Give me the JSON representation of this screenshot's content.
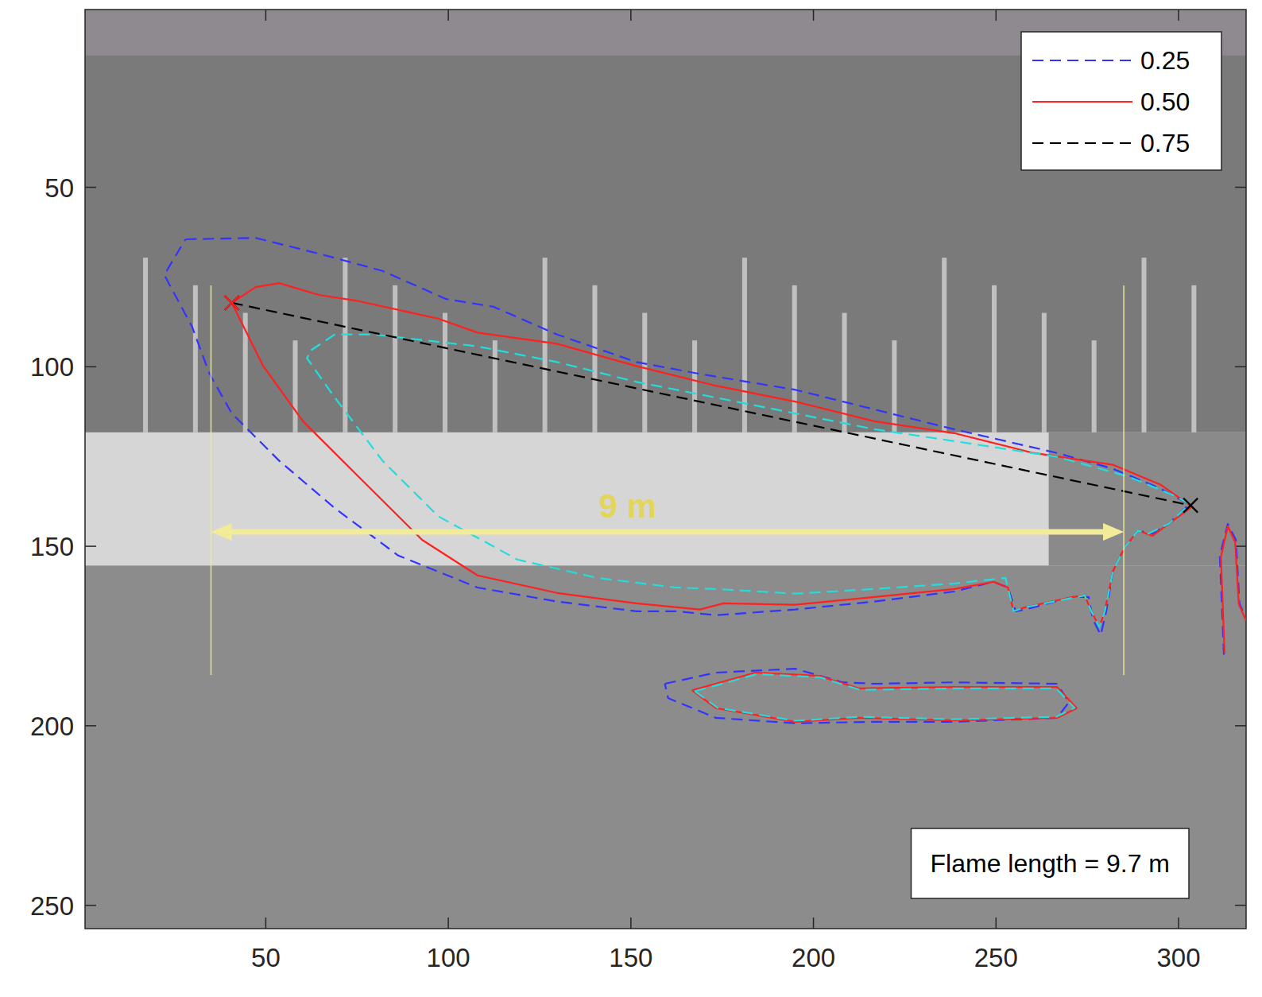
{
  "chart_data": {
    "type": "line",
    "xlim": [
      0.5,
      318.5
    ],
    "ylim": [
      256.5,
      0.5
    ],
    "xticks": [
      50,
      100,
      150,
      200,
      250,
      300
    ],
    "yticks": [
      50,
      100,
      150,
      200,
      250
    ],
    "legend": "upper right",
    "series": [
      {
        "name": "0.25",
        "color": "#3333ff",
        "line_style": "dashed",
        "x": [
          28.0,
          47.2,
          64.6,
          82.0,
          99.3,
          112.4,
          129.8,
          151.5,
          168.9,
          195.0,
          216.7,
          238.5,
          266.7,
          282.0,
          295.0,
          303.0,
          297.2,
          292.8,
          288.9,
          285.2,
          282.0,
          280.2,
          278.7,
          276.5,
          275.4,
          271.1,
          258.0,
          255.4,
          253.3,
          249.3,
          238.5,
          216.7,
          195.0,
          173.3,
          162.4,
          151.5,
          129.8,
          108.0,
          86.3,
          68.9,
          53.7,
          40.7,
          34.6,
          29.8,
          22.2,
          28.0,
          null,
          159.3,
          173.3,
          195.0,
          208.0,
          216.7,
          238.5,
          266.7,
          270.0,
          266.7,
          238.5,
          216.7,
          195.0,
          173.3,
          160.2,
          159.3,
          null,
          312.4,
          311.3,
          313.5,
          315.7,
          316.7,
          318.5
        ],
        "values": [
          64.5,
          64.1,
          68.5,
          73.3,
          81.1,
          83.3,
          91.0,
          98.7,
          102.0,
          106.4,
          111.9,
          117.4,
          124.0,
          128.4,
          133.9,
          138.3,
          143.8,
          146.5,
          145.6,
          150.4,
          157.0,
          168.1,
          174.7,
          170.3,
          164.1,
          164.1,
          167.6,
          168.1,
          161.5,
          159.9,
          162.6,
          165.4,
          167.6,
          169.2,
          168.1,
          168.1,
          165.4,
          161.5,
          152.6,
          139.4,
          126.2,
          113.0,
          102.0,
          88.8,
          74.4,
          64.5,
          null,
          188.3,
          185.2,
          184.1,
          187.9,
          188.3,
          187.9,
          188.3,
          193.4,
          197.8,
          198.9,
          198.9,
          199.3,
          197.8,
          192.3,
          188.3,
          null,
          180.2,
          152.6,
          143.8,
          148.2,
          165.9,
          170.3
        ]
      },
      {
        "name": "0.50",
        "color": "#ff2020",
        "line_style": "solid",
        "x": [
          40.7,
          47.2,
          53.7,
          64.6,
          75.4,
          97.2,
          108.0,
          129.8,
          151.5,
          173.3,
          195.0,
          216.7,
          238.5,
          260.2,
          282.0,
          295.0,
          303.7,
          297.2,
          292.8,
          288.9,
          285.2,
          282.0,
          279.8,
          278.3,
          276.1,
          274.3,
          271.1,
          258.0,
          254.8,
          253.3,
          249.3,
          238.5,
          216.7,
          195.0,
          175.4,
          168.9,
          151.5,
          129.8,
          108.0,
          92.8,
          75.4,
          60.2,
          49.3,
          40.7,
          null,
          166.7,
          184.1,
          201.5,
          212.4,
          238.5,
          266.7,
          272.1,
          266.7,
          238.5,
          212.4,
          195.0,
          173.3,
          166.7,
          null,
          312.6,
          311.6,
          313.5,
          315.5,
          316.5,
          318.5
        ],
        "values": [
          82.2,
          77.8,
          76.7,
          80.0,
          81.7,
          86.6,
          90.5,
          93.6,
          99.8,
          105.3,
          109.7,
          115.2,
          118.5,
          124.0,
          127.3,
          132.8,
          139.0,
          143.8,
          147.1,
          145.6,
          150.4,
          157.0,
          168.1,
          172.5,
          168.1,
          163.7,
          164.1,
          167.0,
          168.1,
          161.5,
          159.9,
          161.9,
          164.1,
          166.3,
          165.9,
          167.6,
          165.9,
          163.0,
          158.1,
          148.2,
          130.6,
          115.2,
          99.8,
          82.2,
          null,
          190.1,
          185.2,
          186.1,
          189.6,
          189.2,
          189.2,
          195.1,
          197.8,
          198.5,
          197.8,
          198.9,
          195.1,
          190.1,
          null,
          179.8,
          153.0,
          144.4,
          148.8,
          166.1,
          170.7
        ]
      },
      {
        "color": "#22dddd",
        "line_style": "dashed",
        "x": [
          62.4,
          68.9,
          79.7,
          108.0,
          129.8,
          151.5,
          173.3,
          195.0,
          216.7,
          238.5,
          266.7,
          286.3,
          299.3,
          303.0,
          297.2,
          291.7,
          288.9,
          285.2,
          282.0,
          279.8,
          278.3,
          276.1,
          274.3,
          258.0,
          254.8,
          252.6,
          238.5,
          216.7,
          195.0,
          173.3,
          162.4,
          140.7,
          118.9,
          97.2,
          82.0,
          68.9,
          61.3,
          62.4,
          null,
          167.5,
          184.6,
          201.8,
          212.8,
          238.5,
          266.5,
          271.5,
          266.5,
          238.5,
          212.8,
          195.0,
          173.8,
          167.5
        ],
        "values": [
          95.4,
          91.0,
          91.0,
          94.3,
          98.7,
          104.2,
          108.6,
          113.0,
          117.4,
          120.7,
          125.1,
          130.6,
          136.1,
          138.3,
          143.8,
          146.5,
          145.6,
          150.4,
          157.0,
          168.1,
          172.5,
          168.1,
          163.7,
          167.0,
          168.1,
          158.8,
          160.4,
          161.9,
          163.2,
          161.9,
          161.5,
          158.8,
          153.7,
          141.6,
          126.2,
          108.6,
          97.6,
          95.4,
          null,
          190.4,
          185.6,
          186.5,
          190.0,
          189.6,
          189.6,
          195.0,
          197.5,
          198.2,
          197.5,
          198.6,
          195.0,
          190.4
        ]
      },
      {
        "name": "0.75",
        "color": "#000000",
        "line_style": "dashed",
        "marker": "x",
        "x": [
          40.7,
          303.3
        ],
        "values": [
          82.2,
          138.6
        ]
      },
      {
        "color": "#ff2020",
        "line_style": "none",
        "marker": "x",
        "x": [
          40.7
        ],
        "values": [
          82.2
        ]
      }
    ],
    "annotations": [
      {
        "text": "9 m",
        "x": [
          35,
          285
        ],
        "y": 146
      },
      {
        "text": "Flame length = 9.7 m"
      }
    ]
  }
}
